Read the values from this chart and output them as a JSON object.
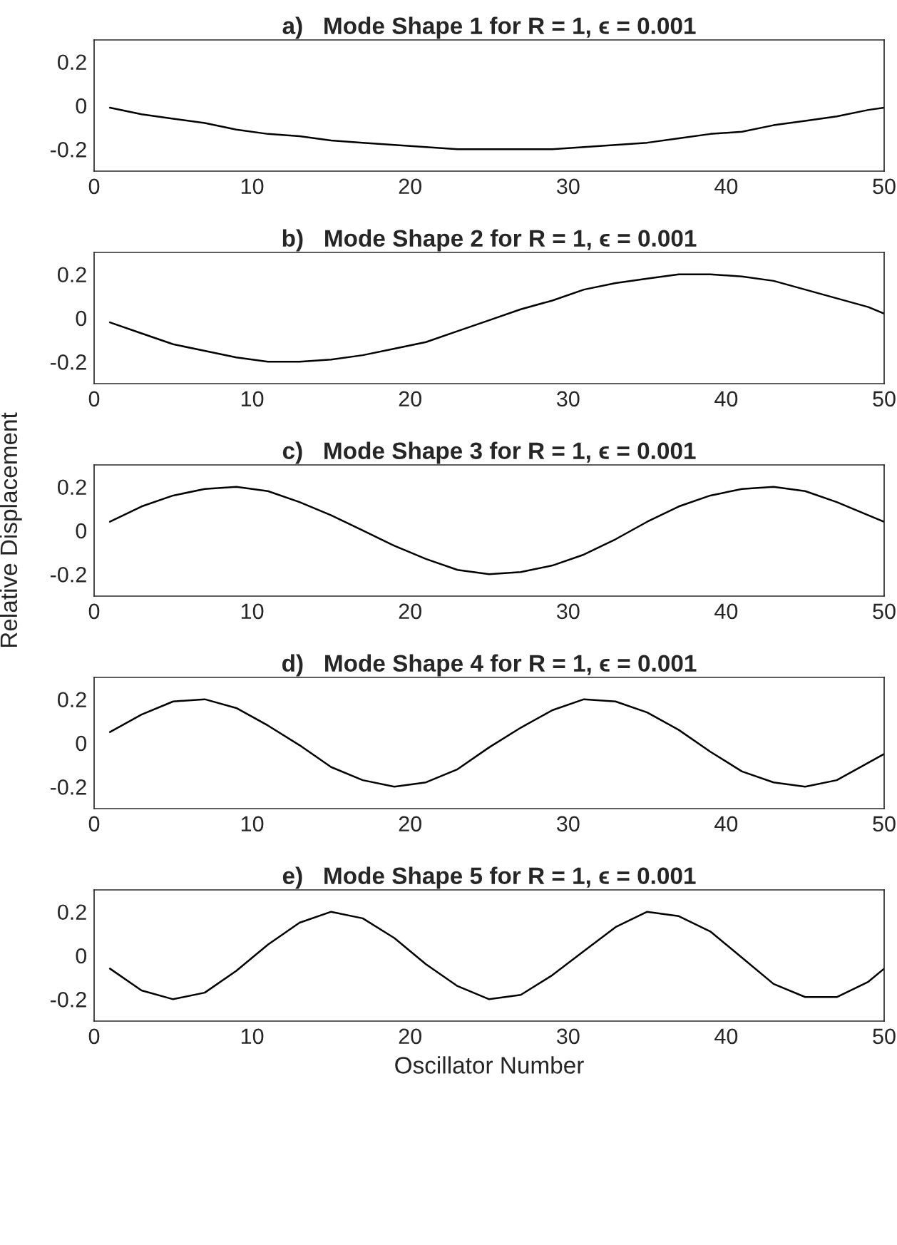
{
  "chart_data": [
    {
      "type": "line",
      "title": "a)   Mode Shape 1 for R = 1, ϵ = 0.001",
      "x": [
        1,
        3,
        5,
        7,
        9,
        11,
        13,
        15,
        17,
        19,
        21,
        23,
        25,
        27,
        29,
        31,
        33,
        35,
        37,
        39,
        41,
        43,
        45,
        47,
        49,
        50
      ],
      "series": [
        {
          "color": "#000000",
          "values": [
            -0.01,
            -0.04,
            -0.06,
            -0.08,
            -0.11,
            -0.13,
            -0.14,
            -0.16,
            -0.17,
            -0.18,
            -0.19,
            -0.2,
            -0.2,
            -0.2,
            -0.2,
            -0.19,
            -0.18,
            -0.17,
            -0.15,
            -0.13,
            -0.12,
            -0.09,
            -0.07,
            -0.05,
            -0.02,
            -0.01
          ]
        }
      ],
      "xlim": [
        0,
        50
      ],
      "ylim": [
        -0.3,
        0.3
      ],
      "xticks": [
        0,
        10,
        20,
        30,
        40,
        50
      ],
      "yticks": [
        -0.2,
        0,
        0.2
      ],
      "grid": false
    },
    {
      "type": "line",
      "title": "b)   Mode Shape 2 for R = 1, ϵ = 0.001",
      "x": [
        1,
        3,
        5,
        7,
        9,
        11,
        13,
        15,
        17,
        19,
        21,
        23,
        25,
        27,
        29,
        31,
        33,
        35,
        37,
        39,
        41,
        43,
        45,
        47,
        49,
        50
      ],
      "series": [
        {
          "color": "#000000",
          "values": [
            -0.02,
            -0.07,
            -0.12,
            -0.15,
            -0.18,
            -0.2,
            -0.2,
            -0.19,
            -0.17,
            -0.14,
            -0.11,
            -0.06,
            -0.01,
            0.04,
            0.08,
            0.13,
            0.16,
            0.18,
            0.2,
            0.2,
            0.19,
            0.17,
            0.13,
            0.09,
            0.05,
            0.02
          ]
        }
      ],
      "xlim": [
        0,
        50
      ],
      "ylim": [
        -0.3,
        0.3
      ],
      "xticks": [
        0,
        10,
        20,
        30,
        40,
        50
      ],
      "yticks": [
        -0.2,
        0,
        0.2
      ],
      "grid": false
    },
    {
      "type": "line",
      "title": "c)   Mode Shape 3 for R = 1, ϵ = 0.001",
      "ylabel": "Relative Displacement",
      "x": [
        1,
        3,
        5,
        7,
        9,
        11,
        13,
        15,
        17,
        19,
        21,
        23,
        25,
        27,
        29,
        31,
        33,
        35,
        37,
        39,
        41,
        43,
        45,
        47,
        49,
        50
      ],
      "series": [
        {
          "color": "#000000",
          "values": [
            0.04,
            0.11,
            0.16,
            0.19,
            0.2,
            0.18,
            0.13,
            0.07,
            0.0,
            -0.07,
            -0.13,
            -0.18,
            -0.2,
            -0.19,
            -0.16,
            -0.11,
            -0.04,
            0.04,
            0.11,
            0.16,
            0.19,
            0.2,
            0.18,
            0.13,
            0.07,
            0.04
          ]
        }
      ],
      "xlim": [
        0,
        50
      ],
      "ylim": [
        -0.3,
        0.3
      ],
      "xticks": [
        0,
        10,
        20,
        30,
        40,
        50
      ],
      "yticks": [
        -0.2,
        0,
        0.2
      ],
      "grid": false
    },
    {
      "type": "line",
      "title": "d)   Mode Shape 4 for R = 1, ϵ = 0.001",
      "x": [
        1,
        3,
        5,
        7,
        9,
        11,
        13,
        15,
        17,
        19,
        21,
        23,
        25,
        27,
        29,
        31,
        33,
        35,
        37,
        39,
        41,
        43,
        45,
        47,
        49,
        50
      ],
      "series": [
        {
          "color": "#000000",
          "values": [
            0.05,
            0.13,
            0.19,
            0.2,
            0.16,
            0.08,
            -0.01,
            -0.11,
            -0.17,
            -0.2,
            -0.18,
            -0.12,
            -0.02,
            0.07,
            0.15,
            0.2,
            0.19,
            0.14,
            0.06,
            -0.04,
            -0.13,
            -0.18,
            -0.2,
            -0.17,
            -0.09,
            -0.05
          ]
        }
      ],
      "xlim": [
        0,
        50
      ],
      "ylim": [
        -0.3,
        0.3
      ],
      "xticks": [
        0,
        10,
        20,
        30,
        40,
        50
      ],
      "yticks": [
        -0.2,
        0,
        0.2
      ],
      "grid": false
    },
    {
      "type": "line",
      "title": "e)   Mode Shape 5 for R = 1, ϵ = 0.001",
      "xlabel": "Oscillator Number",
      "x": [
        1,
        3,
        5,
        7,
        9,
        11,
        13,
        15,
        17,
        19,
        21,
        23,
        25,
        27,
        29,
        31,
        33,
        35,
        37,
        39,
        41,
        43,
        45,
        47,
        49,
        50
      ],
      "series": [
        {
          "color": "#000000",
          "values": [
            -0.06,
            -0.16,
            -0.2,
            -0.17,
            -0.07,
            0.05,
            0.15,
            0.2,
            0.17,
            0.08,
            -0.04,
            -0.14,
            -0.2,
            -0.18,
            -0.09,
            0.02,
            0.13,
            0.2,
            0.18,
            0.11,
            -0.01,
            -0.13,
            -0.19,
            -0.19,
            -0.12,
            -0.06
          ]
        }
      ],
      "xlim": [
        0,
        50
      ],
      "ylim": [
        -0.3,
        0.3
      ],
      "xticks": [
        0,
        10,
        20,
        30,
        40,
        50
      ],
      "yticks": [
        -0.2,
        0,
        0.2
      ],
      "grid": false
    }
  ]
}
